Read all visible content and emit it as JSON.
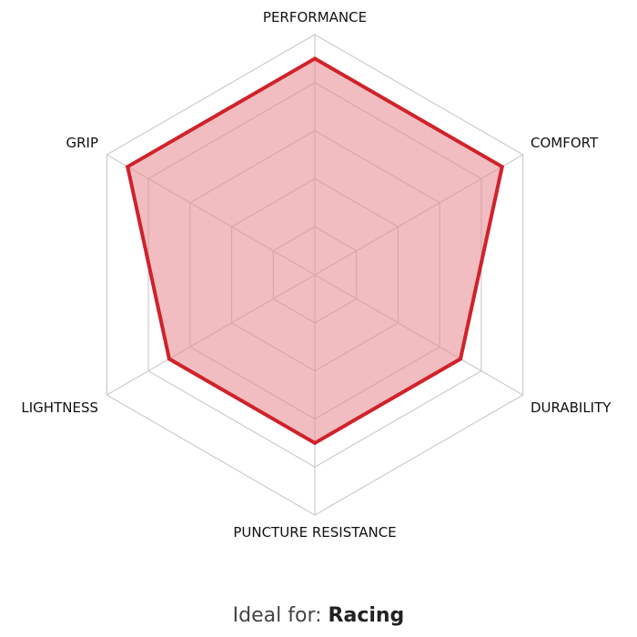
{
  "chart_data": {
    "type": "radar",
    "title": "",
    "axes": [
      "PERFORMANCE",
      "COMFORT",
      "DURABILITY",
      "PUNCTURE RESISTANCE",
      "LIGHTNESS",
      "GRIP"
    ],
    "values": [
      9,
      9,
      7,
      7,
      7,
      9
    ],
    "range": [
      0,
      10
    ],
    "grid_levels": 5,
    "grid": true,
    "colors": {
      "fill": "#e8878d",
      "stroke": "#d0222b",
      "grid": "#cccccc"
    }
  },
  "footer": {
    "prefix": "Ideal for:",
    "value": "Racing"
  }
}
